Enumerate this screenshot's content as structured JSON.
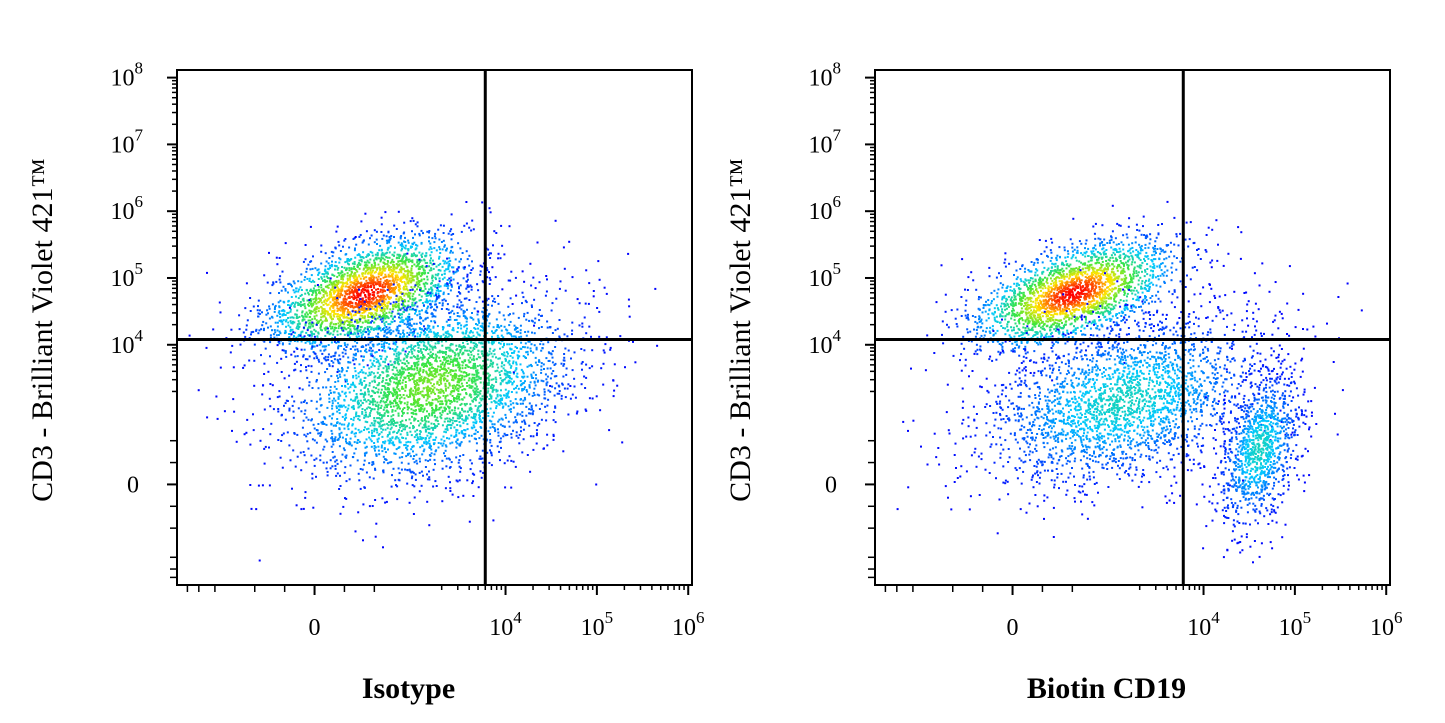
{
  "chart_data": [
    {
      "type": "scatter",
      "subtype": "flow-cytometry-density-dot-plot",
      "title": "",
      "xlabel": "Isotype",
      "ylabel": "CD3 - Brilliant Violet 421™",
      "x_scale": "biexponential",
      "y_scale": "biexponential",
      "x_ticks": [
        {
          "value": 0,
          "label": "0",
          "exp": ""
        },
        {
          "value": 10000,
          "label": "10",
          "exp": "4"
        },
        {
          "value": 100000,
          "label": "10",
          "exp": "5"
        },
        {
          "value": 1000000,
          "label": "10",
          "exp": "6"
        }
      ],
      "y_ticks": [
        {
          "value": 0,
          "label": "0",
          "exp": ""
        },
        {
          "value": 10000,
          "label": "10",
          "exp": "4"
        },
        {
          "value": 100000,
          "label": "10",
          "exp": "5"
        },
        {
          "value": 1000000,
          "label": "10",
          "exp": "6"
        },
        {
          "value": 10000000,
          "label": "10",
          "exp": "7"
        },
        {
          "value": 100000000,
          "label": "10",
          "exp": "8"
        }
      ],
      "quadrant_gate": {
        "x": 6000,
        "y": 12000
      },
      "populations": [
        {
          "x_center": 500,
          "y_center": 60000,
          "x_spread": 0.55,
          "y_spread": 0.65,
          "count": 2600,
          "peak_color": "#ff0000"
        },
        {
          "x_center": 1500,
          "y_center": 2500,
          "x_spread": 0.75,
          "y_spread": 1.1,
          "count": 3600,
          "peak_color": "#7fff00"
        }
      ],
      "sparse_events": [
        [
          9000,
          70000
        ],
        [
          20000,
          20000
        ],
        [
          12000,
          4000
        ],
        [
          30000,
          2500
        ],
        [
          50000,
          2500
        ],
        [
          60000,
          50000
        ],
        [
          90000,
          55000
        ],
        [
          15000,
          130000
        ],
        [
          7000,
          150000
        ]
      ]
    },
    {
      "type": "scatter",
      "subtype": "flow-cytometry-density-dot-plot",
      "title": "",
      "xlabel": "Biotin CD19",
      "ylabel": "CD3 - Brilliant Violet 421™",
      "x_scale": "biexponential",
      "y_scale": "biexponential",
      "x_ticks": [
        {
          "value": 0,
          "label": "0",
          "exp": ""
        },
        {
          "value": 10000,
          "label": "10",
          "exp": "4"
        },
        {
          "value": 100000,
          "label": "10",
          "exp": "5"
        },
        {
          "value": 1000000,
          "label": "10",
          "exp": "6"
        }
      ],
      "y_ticks": [
        {
          "value": 0,
          "label": "0",
          "exp": ""
        },
        {
          "value": 10000,
          "label": "10",
          "exp": "4"
        },
        {
          "value": 100000,
          "label": "10",
          "exp": "5"
        },
        {
          "value": 1000000,
          "label": "10",
          "exp": "6"
        },
        {
          "value": 10000000,
          "label": "10",
          "exp": "7"
        },
        {
          "value": 100000000,
          "label": "10",
          "exp": "8"
        }
      ],
      "quadrant_gate": {
        "x": 6000,
        "y": 12000
      },
      "populations": [
        {
          "x_center": 600,
          "y_center": 60000,
          "x_spread": 0.55,
          "y_spread": 0.6,
          "count": 2400,
          "peak_color": "#ff0000"
        },
        {
          "x_center": 1300,
          "y_center": 1500,
          "x_spread": 0.75,
          "y_spread": 1.0,
          "count": 2600,
          "peak_color": "#22ccff"
        },
        {
          "x_center": 40000,
          "y_center": 500,
          "x_spread": 0.22,
          "y_spread": 0.9,
          "count": 1100,
          "peak_color": "#22ccff"
        }
      ],
      "sparse_events": [
        [
          12000,
          150000
        ],
        [
          25000,
          200000
        ],
        [
          40000,
          80000
        ],
        [
          60000,
          90000
        ],
        [
          120000,
          60000
        ],
        [
          30000,
          20000
        ],
        [
          80000,
          15000
        ],
        [
          150000,
          1000
        ],
        [
          9000,
          60000
        ],
        [
          70000,
          30000
        ],
        [
          20000,
          9000
        ]
      ]
    }
  ]
}
